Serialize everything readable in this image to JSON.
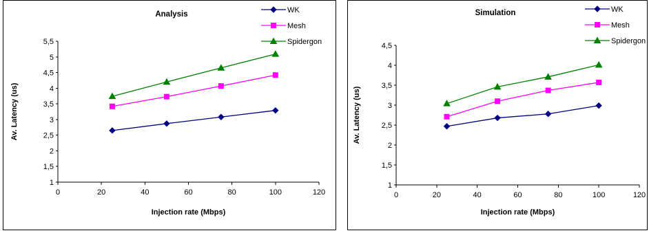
{
  "chart_data": [
    {
      "type": "line",
      "title": "Analysis",
      "xlabel": "Injection rate (Mbps)",
      "ylabel": "Av. Latency (us)",
      "xlim": [
        0,
        120
      ],
      "ylim": [
        1,
        5.5
      ],
      "xticks": [
        "0",
        "20",
        "40",
        "60",
        "80",
        "100",
        "120"
      ],
      "yticks": [
        "1",
        "1,5",
        "2",
        "2,5",
        "3",
        "3,5",
        "4",
        "4,5",
        "5",
        "5,5"
      ],
      "x": [
        25,
        50,
        75,
        100
      ],
      "grid": false,
      "legend": "top-right",
      "series": [
        {
          "name": "WK",
          "color": "#000080",
          "marker": "diamond",
          "values": [
            2.65,
            2.87,
            3.08,
            3.29
          ]
        },
        {
          "name": "Mesh",
          "color": "#FF00FF",
          "marker": "square",
          "values": [
            3.42,
            3.73,
            4.07,
            4.42
          ]
        },
        {
          "name": "Spidergon",
          "color": "#008000",
          "marker": "triangle",
          "values": [
            3.74,
            4.2,
            4.65,
            5.09
          ]
        }
      ]
    },
    {
      "type": "line",
      "title": "Simulation",
      "xlabel": "Injection rate (Mbps)",
      "ylabel": "Av. Latency (us)",
      "xlim": [
        0,
        120
      ],
      "ylim": [
        1,
        4.5
      ],
      "xticks": [
        "0",
        "20",
        "40",
        "60",
        "80",
        "100",
        "120"
      ],
      "yticks": [
        "1",
        "1,5",
        "2",
        "2,5",
        "3",
        "3,5",
        "4",
        "4,5"
      ],
      "x": [
        25,
        50,
        75,
        100
      ],
      "grid": false,
      "legend": "top-right",
      "series": [
        {
          "name": "WK",
          "color": "#000080",
          "marker": "diamond",
          "values": [
            2.47,
            2.68,
            2.78,
            2.99
          ]
        },
        {
          "name": "Mesh",
          "color": "#FF00FF",
          "marker": "square",
          "values": [
            2.71,
            3.1,
            3.37,
            3.57
          ]
        },
        {
          "name": "Spidergon",
          "color": "#008000",
          "marker": "triangle",
          "values": [
            3.04,
            3.46,
            3.71,
            4.01
          ]
        }
      ]
    }
  ]
}
